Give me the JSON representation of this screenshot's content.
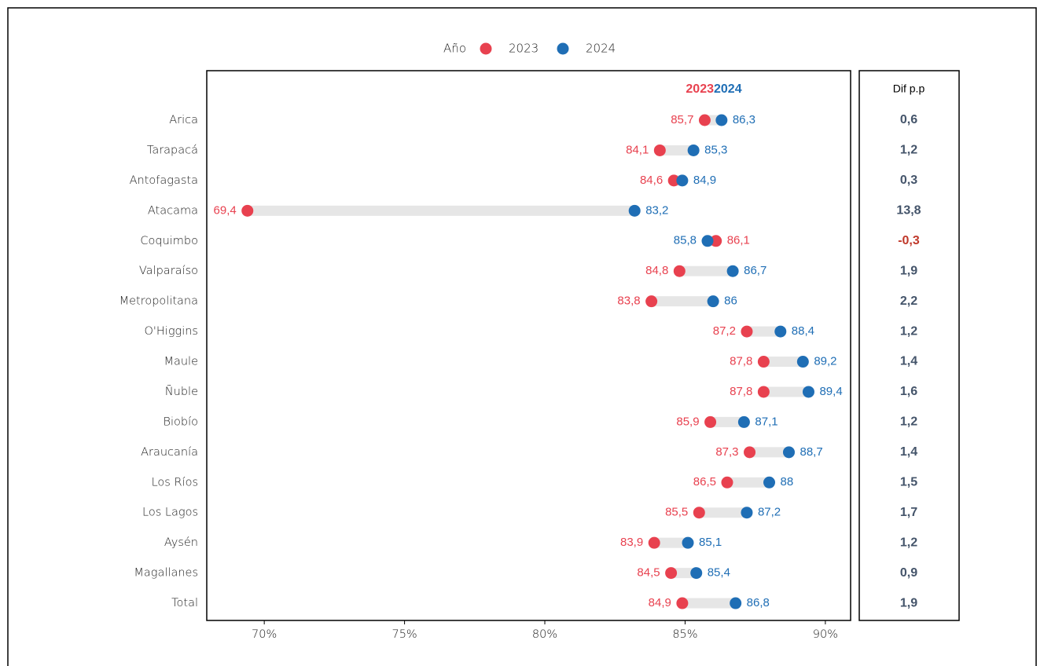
{
  "chart_data": {
    "type": "dumbbell",
    "legend_title": "Año",
    "categories": [
      "Arica",
      "Tarapacá",
      "Antofagasta",
      "Atacama",
      "Coquimbo",
      "Valparaíso",
      "Metropolitana",
      "O'Higgins",
      "Maule",
      "Ñuble",
      "Biobío",
      "Araucanía",
      "Los Ríos",
      "Los Lagos",
      "Aysén",
      "Magallanes",
      "Total"
    ],
    "series": [
      {
        "name": "2023",
        "color": "#e8414f",
        "values": [
          85.7,
          84.1,
          84.6,
          69.4,
          86.1,
          84.8,
          83.8,
          87.2,
          87.8,
          87.8,
          85.9,
          87.3,
          86.5,
          85.5,
          83.9,
          84.5,
          84.9
        ],
        "value_labels": [
          "85,7",
          "84,1",
          "84,6",
          "69,4",
          "86,1",
          "84,8",
          "83,8",
          "87,2",
          "87,8",
          "87,8",
          "85,9",
          "87,3",
          "86,5",
          "85,5",
          "83,9",
          "84,5",
          "84,9"
        ]
      },
      {
        "name": "2024",
        "color": "#1f6eb5",
        "values": [
          86.3,
          85.3,
          84.9,
          83.2,
          85.8,
          86.7,
          86,
          88.4,
          89.2,
          89.4,
          87.1,
          88.7,
          88,
          87.2,
          85.1,
          85.4,
          86.8
        ],
        "value_labels": [
          "86,3",
          "85,3",
          "84,9",
          "83,2",
          "85,8",
          "86,7",
          "86",
          "88,4",
          "89,2",
          "89,4",
          "87,1",
          "88,7",
          "88",
          "87,2",
          "85,1",
          "85,4",
          "86,8"
        ]
      }
    ],
    "diff_title": "Dif p.p",
    "diff_values": [
      0.6,
      1.2,
      0.3,
      13.8,
      -0.3,
      1.9,
      2.2,
      1.2,
      1.4,
      1.6,
      1.2,
      1.4,
      1.5,
      1.7,
      1.2,
      0.9,
      1.9
    ],
    "diff_value_labels": [
      "0,6",
      "1,2",
      "0,3",
      "13,8",
      "-0,3",
      "1,9",
      "2,2",
      "1,2",
      "1,4",
      "1,6",
      "1,2",
      "1,4",
      "1,5",
      "1,7",
      "1,2",
      "0,9",
      "1,9"
    ],
    "diff_colors": {
      "positive": "#44546a",
      "negative": "#c0392b"
    },
    "xlim": [
      67.95,
      90.9
    ],
    "xticks": [
      {
        "value": 70,
        "label": "70%"
      },
      {
        "value": 75,
        "label": "75%"
      },
      {
        "value": 80,
        "label": "80%"
      },
      {
        "value": 85,
        "label": "85%"
      },
      {
        "value": 90,
        "label": "90%"
      }
    ],
    "legend_position": "top"
  }
}
